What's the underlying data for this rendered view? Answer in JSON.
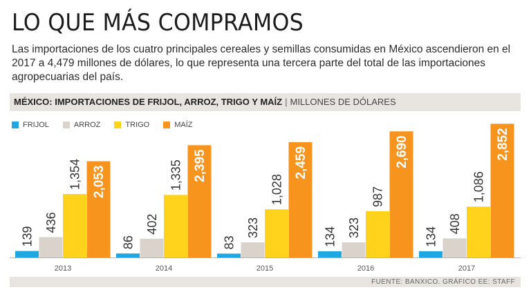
{
  "header": {
    "title": "LO QUE MÁS COMPRAMOS",
    "subtitle": "Las importaciones de los cuatro principales cereales y semillas consumidas en México ascendieron en el 2017 a 4,479 millones de dólares, lo que representa una tercera parte del total de las importaciones agropecuarias del país."
  },
  "banner": {
    "main": "MÉXICO: IMPORTACIONES DE FRIJOL, ARROZ, TRIGO Y MAÍZ",
    "separator": "|",
    "units": "MILLONES DE DÓLARES"
  },
  "footer": {
    "source": "FUENTE: BANXICO. GRÁFICO EE: STAFF"
  },
  "colors": {
    "frijol": "#1ea7e1",
    "arroz": "#d9d3cc",
    "trigo": "#ffd31c",
    "maiz": "#f7941d",
    "axis": "#bdb6ae"
  },
  "chart_data": {
    "type": "bar",
    "title": "MÉXICO: IMPORTACIONES DE FRIJOL, ARROZ, TRIGO Y MAÍZ",
    "ylabel": "MILLONES DE DÓLARES",
    "xlabel": "",
    "categories": [
      "2013",
      "2014",
      "2015",
      "2016",
      "2017"
    ],
    "ylim": [
      0,
      2900
    ],
    "legend_position": "top-left",
    "grid": false,
    "series": [
      {
        "key": "frijol",
        "name": "FRIJOL",
        "values": [
          139,
          86,
          83,
          134,
          134
        ],
        "labels": [
          "139",
          "86",
          "83",
          "134",
          "134"
        ]
      },
      {
        "key": "arroz",
        "name": "ARROZ",
        "values": [
          436,
          402,
          323,
          323,
          408
        ],
        "labels": [
          "436",
          "402",
          "323",
          "323",
          "408"
        ]
      },
      {
        "key": "trigo",
        "name": "TRIGO",
        "values": [
          1354,
          1335,
          1028,
          987,
          1086
        ],
        "labels": [
          "1,354",
          "1,335",
          "1,028",
          "987",
          "1,086"
        ]
      },
      {
        "key": "maiz",
        "name": "MAÍZ",
        "values": [
          2053,
          2395,
          2459,
          2690,
          2852
        ],
        "labels": [
          "2,053",
          "2,395",
          "2,459",
          "2,690",
          "2,852"
        ]
      }
    ]
  }
}
